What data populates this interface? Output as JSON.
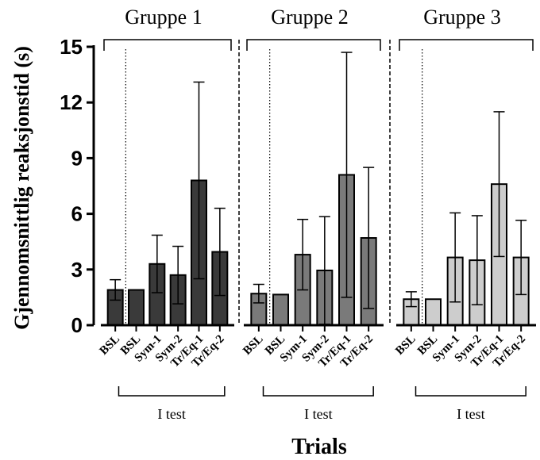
{
  "chart_data": {
    "type": "bar",
    "ylabel": "Gjennomsnittlig reaksjonstid (s)",
    "xlabel": "Trials",
    "ylim": [
      0,
      15
    ],
    "yticks": [
      0,
      3,
      6,
      9,
      12,
      15
    ],
    "error_bars": true,
    "group_bracket_label": "I test",
    "groups": [
      {
        "name": "Gruppe 1",
        "color": "#3a3a3a",
        "categories": [
          "BSL",
          "BSL",
          "Sym-1",
          "Sym-2",
          "Tr/Eq-1",
          "Tr/Eq-2"
        ],
        "values": [
          1.9,
          1.9,
          3.3,
          2.7,
          7.8,
          3.95
        ],
        "errors": [
          0.55,
          0,
          1.55,
          1.55,
          5.3,
          2.35
        ]
      },
      {
        "name": "Gruppe 2",
        "color": "#7a7a7a",
        "categories": [
          "BSL",
          "BSL",
          "Sym-1",
          "Sym-2",
          "Tr/Eq-1",
          "Tr/Eq-2"
        ],
        "values": [
          1.7,
          1.65,
          3.8,
          2.95,
          8.1,
          4.7
        ],
        "errors": [
          0.5,
          0,
          1.9,
          2.9,
          6.6,
          3.8
        ]
      },
      {
        "name": "Gruppe 3",
        "color": "#cdcdcd",
        "categories": [
          "BSL",
          "BSL",
          "Sym-1",
          "Sym-2",
          "Tr/Eq-1",
          "Tr/Eq-2"
        ],
        "values": [
          1.4,
          1.4,
          3.65,
          3.5,
          7.6,
          3.65
        ],
        "errors": [
          0.4,
          0,
          2.4,
          2.4,
          3.9,
          2.0
        ]
      }
    ]
  }
}
